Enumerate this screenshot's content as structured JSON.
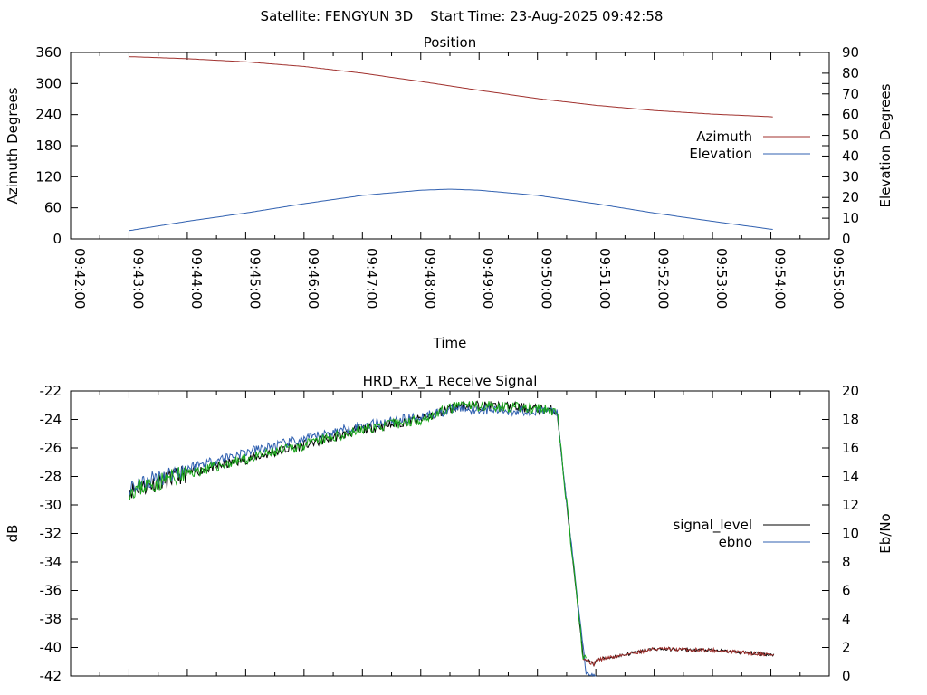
{
  "header": "Satellite: FENGYUN 3D    Start Time: 23-Aug-2025 09:42:58",
  "colors": {
    "azimuth": "#a0302d",
    "elevation": "#3060b0",
    "signal_level": "#000000",
    "signal_tail": "#a0302d",
    "ebno": "#3060b0",
    "ebno_green": "#1aa81a"
  },
  "chart_data": [
    {
      "type": "line",
      "title": "Position",
      "xlabel": "Time",
      "ylabel": "Azimuth Degrees",
      "y2label": "Elevation Degrees",
      "xlim": [
        "09:42:00",
        "09:55:00"
      ],
      "xticks": [
        "09:42:00",
        "09:43:00",
        "09:44:00",
        "09:45:00",
        "09:46:00",
        "09:47:00",
        "09:48:00",
        "09:49:00",
        "09:50:00",
        "09:51:00",
        "09:52:00",
        "09:53:00",
        "09:54:00",
        "09:55:00"
      ],
      "ylim": [
        0,
        360
      ],
      "yticks": [
        0,
        60,
        120,
        180,
        240,
        300,
        360
      ],
      "y2lim": [
        0,
        90
      ],
      "y2ticks": [
        0,
        10,
        20,
        30,
        40,
        50,
        60,
        70,
        80,
        90
      ],
      "legend_position": "right",
      "series": [
        {
          "name": "Azimuth",
          "axis": "y",
          "x": [
            "09:43:00",
            "09:44:00",
            "09:45:00",
            "09:46:00",
            "09:47:00",
            "09:48:00",
            "09:49:00",
            "09:50:00",
            "09:51:00",
            "09:52:00",
            "09:53:00",
            "09:54:00",
            "09:54:03"
          ],
          "values": [
            352,
            348,
            342,
            333,
            320,
            304,
            287,
            271,
            258,
            248,
            241,
            236,
            235
          ]
        },
        {
          "name": "Elevation",
          "axis": "y2",
          "x": [
            "09:43:00",
            "09:44:00",
            "09:45:00",
            "09:46:00",
            "09:47:00",
            "09:48:00",
            "09:48:30",
            "09:49:00",
            "09:50:00",
            "09:51:00",
            "09:52:00",
            "09:53:00",
            "09:54:00",
            "09:54:03"
          ],
          "values": [
            4,
            8.5,
            12.5,
            17,
            21,
            23.5,
            24,
            23.5,
            21,
            17,
            12.5,
            8.5,
            4.7,
            4.5
          ]
        }
      ]
    },
    {
      "type": "line",
      "title": "HRD_RX_1 Receive Signal",
      "xlabel": "",
      "ylabel": "dB",
      "y2label": "Eb/No",
      "xlim": [
        "09:42:00",
        "09:55:00"
      ],
      "ylim": [
        -42,
        -22
      ],
      "yticks": [
        -42,
        -40,
        -38,
        -36,
        -34,
        -32,
        -30,
        -28,
        -26,
        -24,
        -22
      ],
      "y2lim": [
        0,
        20
      ],
      "y2ticks": [
        0,
        2,
        4,
        6,
        8,
        10,
        12,
        14,
        16,
        18,
        20
      ],
      "legend_position": "right",
      "series": [
        {
          "name": "signal_level",
          "axis": "y",
          "x": [
            "09:43:00",
            "09:44:00",
            "09:45:00",
            "09:46:00",
            "09:47:00",
            "09:48:00",
            "09:48:40",
            "09:49:30",
            "09:50:20",
            "09:50:27",
            "09:50:47",
            "09:50:58",
            "09:51:00",
            "09:52:00",
            "09:53:00",
            "09:54:00",
            "09:54:03"
          ],
          "values": [
            -29.0,
            -27.8,
            -26.8,
            -25.8,
            -24.7,
            -24.0,
            -23.0,
            -23.1,
            -23.4,
            -28.0,
            -40.7,
            -41.2,
            -40.9,
            -40.1,
            -40.2,
            -40.5,
            -40.5
          ]
        },
        {
          "name": "ebno",
          "axis": "y2",
          "x": [
            "09:43:00",
            "09:44:00",
            "09:45:00",
            "09:46:00",
            "09:47:00",
            "09:48:00",
            "09:48:40",
            "09:49:30",
            "09:50:20",
            "09:50:27",
            "09:50:50",
            "09:51:00"
          ],
          "values": [
            13.2,
            14.6,
            15.7,
            16.6,
            17.6,
            18.2,
            18.8,
            18.6,
            18.6,
            14.0,
            0.2,
            0.0
          ]
        }
      ]
    }
  ]
}
